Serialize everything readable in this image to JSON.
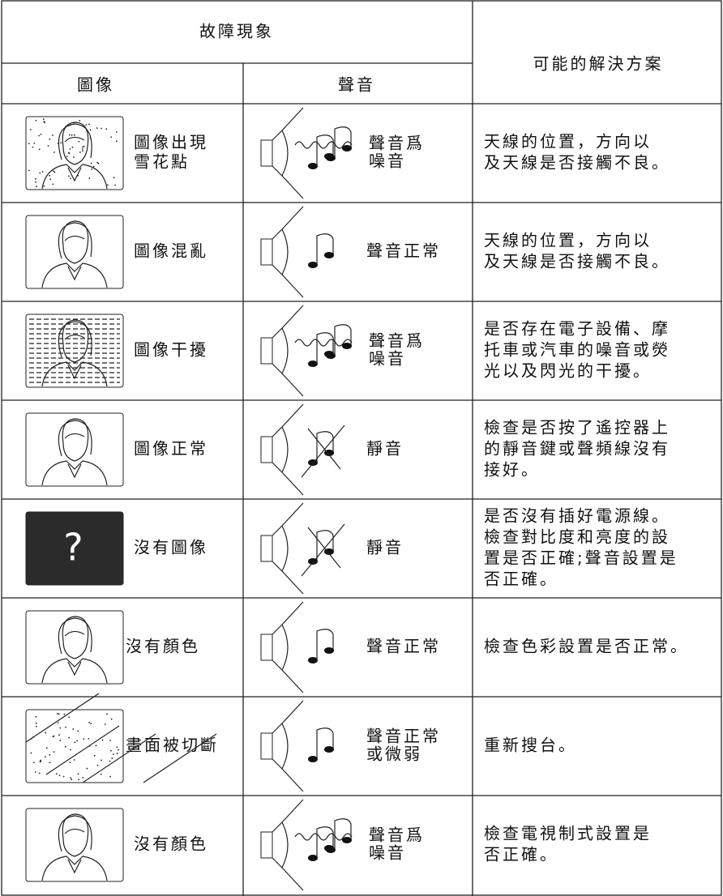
{
  "header": {
    "title": "故障現象",
    "solution_header": "可能的解決方案",
    "picture_header": "圖像",
    "sound_header": "聲音"
  },
  "rows": [
    {
      "picture": [
        "圖像出現",
        "雪花點"
      ],
      "sound": [
        "聲音爲",
        "噪音"
      ],
      "solution": [
        "天線的位置，方向以",
        "及天線是否接觸不良。"
      ]
    },
    {
      "picture": [
        "圖像混亂"
      ],
      "sound": [
        "聲音正常"
      ],
      "solution": [
        "天線的位置，方向以",
        "及天線是否接觸不良。"
      ]
    },
    {
      "picture": [
        "圖像干擾"
      ],
      "sound": [
        "聲音爲",
        "噪音"
      ],
      "solution": [
        "是否存在電子設備、摩",
        "托車或汽車的噪音或熒",
        "光以及閃光的干擾。"
      ]
    },
    {
      "picture": [
        "圖像正常"
      ],
      "sound": [
        "靜音"
      ],
      "solution": [
        "檢查是否按了遙控器上",
        "的靜音鍵或聲頻線沒有",
        "接好。"
      ]
    },
    {
      "screen_text": "?",
      "picture": [
        "沒有圖像"
      ],
      "sound": [
        "靜音"
      ],
      "solution": [
        "是否沒有插好電源線。",
        "檢查對比度和亮度的設",
        "置是否正確;聲音設置是",
        "否正確。"
      ]
    },
    {
      "picture": [
        "沒有顏色"
      ],
      "sound": [
        "聲音正常"
      ],
      "solution": [
        "檢查色彩設置是否正常。"
      ]
    },
    {
      "picture": [
        "畫面被切斷"
      ],
      "sound": [
        "聲音正常",
        "或微弱"
      ],
      "solution": [
        "重新搜台。"
      ]
    },
    {
      "picture": [
        "沒有顏色"
      ],
      "sound": [
        "聲音爲",
        "噪音"
      ],
      "solution": [
        "檢查電視制式設置是",
        "否正確。"
      ]
    }
  ]
}
